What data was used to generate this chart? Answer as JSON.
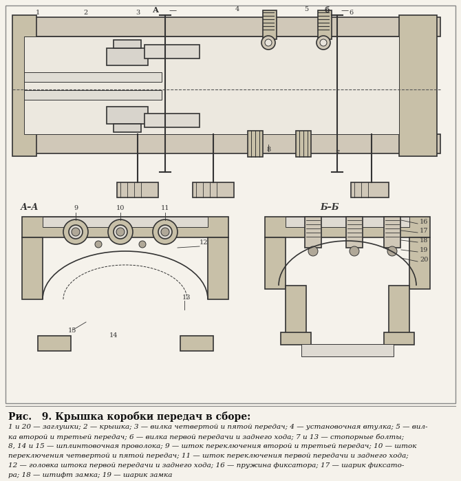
{
  "title": "Рис.   9. Крышка коробки передач в сборе:",
  "caption_lines": [
    "1 и 20 — заглушки; 2 — крышка; 3 — вилка четвертой и пятой передач; 4 — установочная втулка; 5 — вил-",
    "ка второй и третьей передач; 6 — вилка первой передачи и заднего хода; 7 и 13 — стопорные болты;",
    "8, 14 и 15 — шплинтовочная проволока; 9 — шток переключения второй и третьей передач; 10 — шток",
    "переключения четвертой и пятой передач; 11 — шток переключения первой передачи и заднего хода;",
    "12 — головка штока первой передачи и заднего хода; 16 — пружина фиксатора; 17 — шарик фиксато-",
    "ра; 18 — штифт замка; 19 — шарик замка"
  ],
  "bg_color": "#f5f2eb",
  "border_color": "#222222",
  "text_color": "#111111",
  "fig_width": 6.7,
  "fig_height": 6.99,
  "dpi": 100
}
